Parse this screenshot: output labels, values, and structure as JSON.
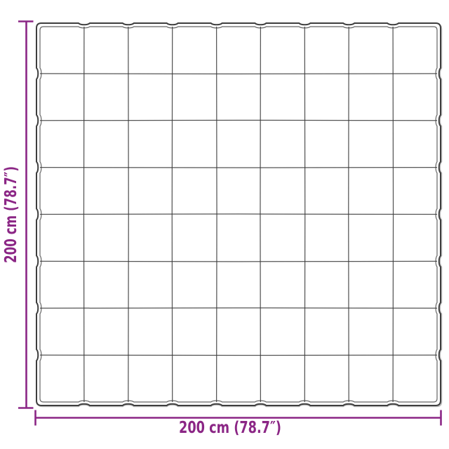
{
  "diagram": {
    "grid": {
      "columns": 9,
      "rows": 8
    },
    "labels": {
      "height": "200 cm (78.7″)",
      "width": "200 cm (78.7″)"
    },
    "colors": {
      "dimension": "#8B2685",
      "outline": "#3E3E3E",
      "background": "#FFFFFF"
    }
  }
}
